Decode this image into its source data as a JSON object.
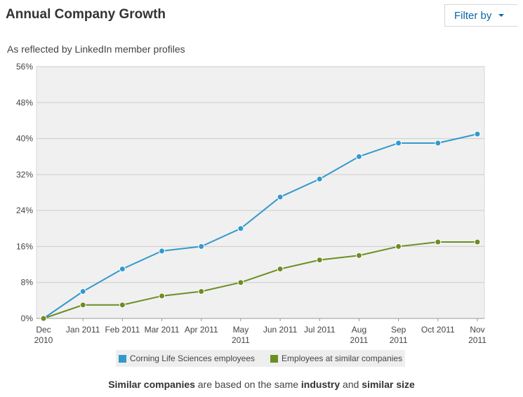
{
  "header": {
    "title": "Annual Company Growth",
    "filter_label": "Filter by"
  },
  "subtitle": "As reflected by LinkedIn member profiles",
  "chart_data": {
    "type": "line",
    "x_labels": [
      [
        "Dec",
        "2010"
      ],
      [
        "Jan 2011"
      ],
      [
        "Feb 2011"
      ],
      [
        "Mar 2011"
      ],
      [
        "Apr 2011"
      ],
      [
        "May",
        "2011"
      ],
      [
        "Jun 2011"
      ],
      [
        "Jul 2011"
      ],
      [
        "Aug",
        "2011"
      ],
      [
        "Sep",
        "2011"
      ],
      [
        "Oct 2011"
      ],
      [
        "Nov",
        "2011"
      ]
    ],
    "y_ticks": [
      "0%",
      "8%",
      "16%",
      "24%",
      "32%",
      "40%",
      "48%",
      "56%"
    ],
    "ylim": [
      0,
      56
    ],
    "grid": true,
    "legend_position": "bottom",
    "series": [
      {
        "name": "Corning Life Sciences employees",
        "color": "#3399cc",
        "values": [
          0,
          6,
          11,
          15,
          16,
          20,
          27,
          31,
          36,
          39,
          39,
          41
        ]
      },
      {
        "name": "Employees at similar companies",
        "color": "#6b8e23",
        "values": [
          0,
          3,
          3,
          5,
          6,
          8,
          11,
          13,
          14,
          16,
          17,
          17
        ]
      }
    ]
  },
  "footnote": {
    "part1": "Similar companies",
    "part2": " are based on the same ",
    "part3": "industry",
    "part4": " and ",
    "part5": "similar size"
  }
}
